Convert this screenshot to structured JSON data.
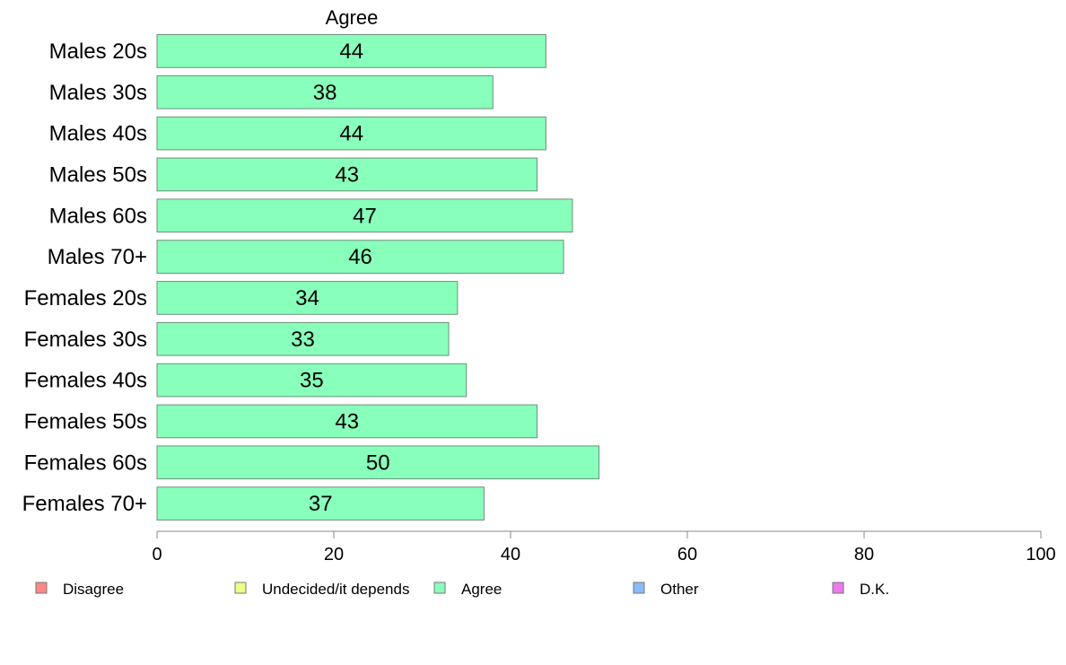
{
  "chart_data": {
    "type": "bar",
    "orientation": "horizontal",
    "title": "Agree",
    "categories": [
      "Males 20s",
      "Males 30s",
      "Males 40s",
      "Males 50s",
      "Males 60s",
      "Males 70+",
      "Females 20s",
      "Females 30s",
      "Females 40s",
      "Females 50s",
      "Females 60s",
      "Females 70+"
    ],
    "series": [
      {
        "name": "Agree",
        "values": [
          44,
          38,
          44,
          43,
          47,
          46,
          34,
          33,
          35,
          43,
          50,
          37
        ],
        "color": "#88FFBB"
      }
    ],
    "xlim": [
      0,
      100
    ],
    "x_ticks": [
      0,
      20,
      40,
      60,
      80,
      100
    ],
    "grid": false,
    "legend_placement": "bottom",
    "legend": [
      {
        "label": "Disagree",
        "color": "#FF8888"
      },
      {
        "label": "Undecided/it depends",
        "color": "#EEFF88"
      },
      {
        "label": "Agree",
        "color": "#88FFBB"
      },
      {
        "label": "Other",
        "color": "#88BBFF"
      },
      {
        "label": "D.K.",
        "color": "#EE77EE"
      }
    ]
  }
}
